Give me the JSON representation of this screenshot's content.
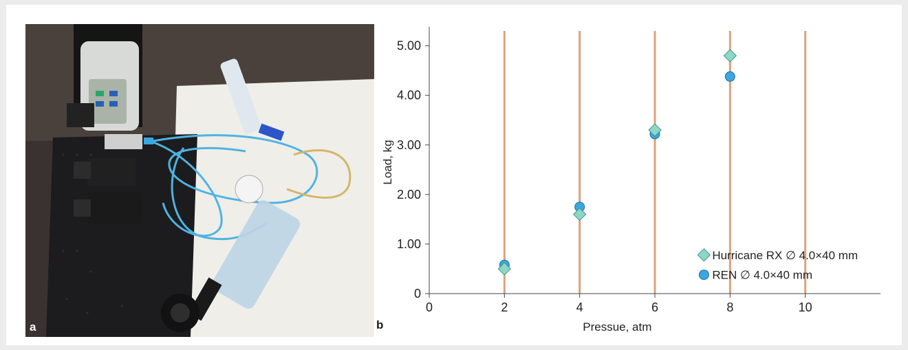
{
  "figure": {
    "panel_a_label": "a",
    "panel_b_label": "b",
    "photo_description_icon": "test-apparatus-photo"
  },
  "chart_data": {
    "type": "scatter",
    "xlabel": "Pressue, atm",
    "ylabel": "Load, kg",
    "xlim": [
      0,
      12
    ],
    "ylim": [
      0,
      5.3
    ],
    "xticks": [
      0,
      2,
      4,
      6,
      8,
      10
    ],
    "xtick_labels": [
      "0",
      "2",
      "4",
      "6",
      "8",
      "10"
    ],
    "yticks": [
      0,
      1,
      2,
      3,
      4,
      5
    ],
    "ytick_labels": [
      "0",
      "1.00",
      "2.00",
      "3.00",
      "4.00",
      "5.00"
    ],
    "vertical_lines_at": [
      2,
      4,
      6,
      8,
      10
    ],
    "vertical_line_color": "#e0a07a",
    "series": [
      {
        "name": "Hurricane RX ∅ 4.0×40 mm",
        "marker": "diamond",
        "color": "#8fd6c6",
        "stroke": "#3a9a8a",
        "x": [
          2,
          4,
          6,
          8
        ],
        "y": [
          0.5,
          1.6,
          3.3,
          4.8
        ]
      },
      {
        "name": "REN ∅ 4.0×40 mm",
        "marker": "circle",
        "color": "#3aa7e0",
        "stroke": "#1f6e9e",
        "x": [
          2,
          4,
          6,
          8
        ],
        "y": [
          0.58,
          1.75,
          3.22,
          4.38
        ]
      }
    ],
    "legend_position": "bottom-right"
  }
}
